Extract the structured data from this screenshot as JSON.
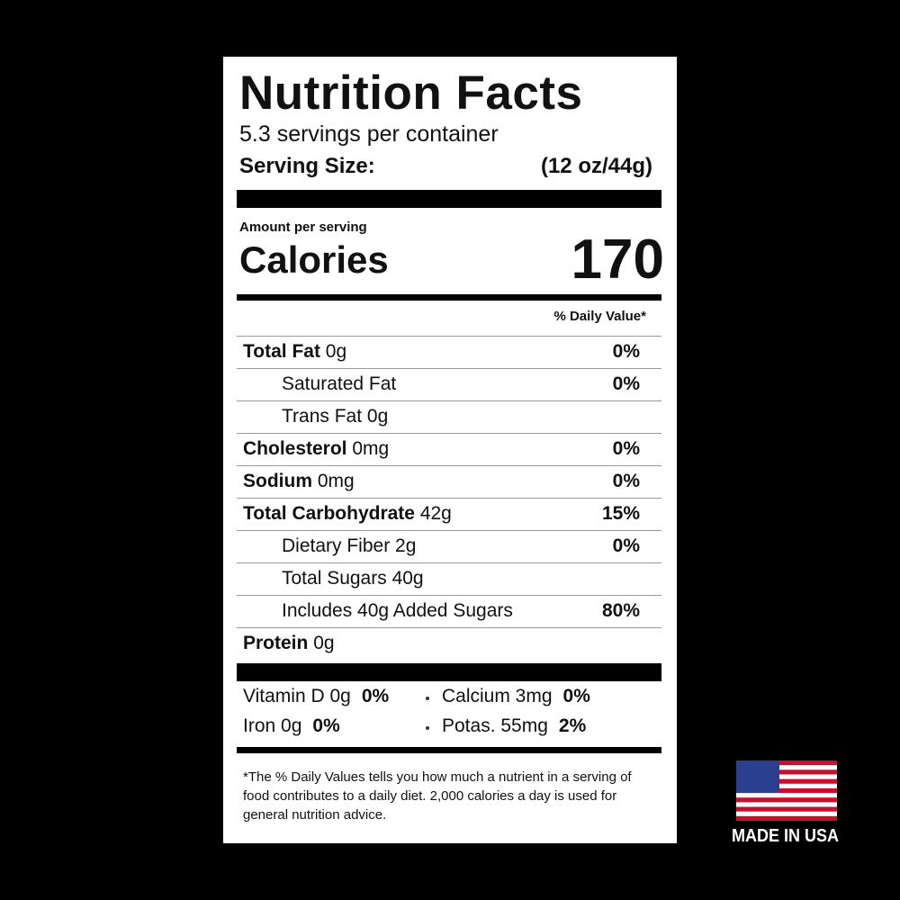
{
  "label": {
    "title": "Nutrition Facts",
    "servings": "5.3 servings per container",
    "serving_size_label": "Serving Size:",
    "serving_size_value": "(12 oz/44g)",
    "amount_per_serving": "Amount per serving",
    "calories_label": "Calories",
    "calories_value": "170",
    "dv_header": "% Daily Value*",
    "rows": [
      {
        "name": "Total Fat",
        "amount": "0g",
        "dv": "0%",
        "indent": false
      },
      {
        "name": "Saturated Fat",
        "dv": "0%",
        "indent": true
      },
      {
        "name": "Trans Fat 0g",
        "indent": true
      },
      {
        "name": "Cholesterol",
        "amount": "0mg",
        "dv": "0%",
        "indent": false
      },
      {
        "name": "Sodium",
        "amount": "0mg",
        "dv": "0%",
        "indent": false
      },
      {
        "name": "Total Carbohydrate",
        "amount": "42g",
        "dv": "15%",
        "indent": false
      },
      {
        "name": "Dietary Fiber 2g",
        "dv": "0%",
        "indent": true
      },
      {
        "name": "Total Sugars 40g",
        "indent": true
      },
      {
        "name": "Includes 40g Added Sugars",
        "dv": "80%",
        "indent": true
      },
      {
        "name": "Protein",
        "amount": "0g",
        "indent": false
      }
    ],
    "vitamins": [
      {
        "name": "Vitamin D 0g",
        "dv": "0%"
      },
      {
        "name": "Calcium 3mg",
        "dv": "0%"
      },
      {
        "name": "Iron 0g",
        "dv": "0%"
      },
      {
        "name": "Potas. 55mg",
        "dv": "2%"
      }
    ],
    "footnote": "*The % Daily Values tells you how much a nutrient in a serving of food contributes to a daily diet. 2,000 calories a day is used for general nutrition advice."
  },
  "badge": {
    "text": "MADE IN USA"
  }
}
